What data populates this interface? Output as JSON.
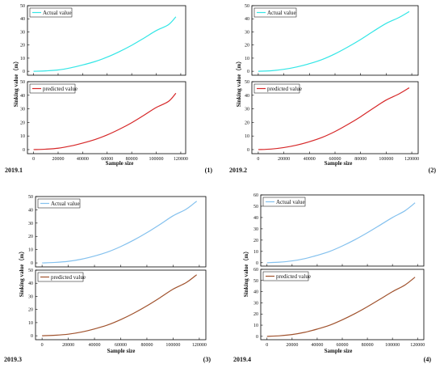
{
  "panels": [
    {
      "date_label": "2019.1",
      "number_label": "(1)",
      "chart_data": [
        {
          "type": "line",
          "series": [
            {
              "name": "Actual value",
              "color": "#33e6e6",
              "x": [
                0,
                10000,
                20000,
                30000,
                40000,
                50000,
                60000,
                70000,
                80000,
                90000,
                100000,
                110000,
                116000
              ],
              "values": [
                0,
                0.3,
                1.0,
                2.6,
                4.8,
                7.4,
                10.8,
                15.0,
                19.8,
                25.3,
                31.0,
                35.5,
                41.5
              ]
            }
          ],
          "xlim": [
            -5000,
            124000
          ],
          "ylim": [
            -3,
            50
          ],
          "yticks": [
            0,
            10,
            20,
            30,
            40,
            50
          ],
          "xticks": [
            0,
            20000,
            40000,
            60000,
            80000,
            100000,
            120000
          ],
          "xlabel": "",
          "ylabel": "",
          "legend": "top-left"
        },
        {
          "type": "line",
          "series": [
            {
              "name": "predicted value",
              "color": "#d62728",
              "x": [
                0,
                10000,
                20000,
                30000,
                40000,
                50000,
                60000,
                70000,
                80000,
                90000,
                100000,
                110000,
                116000
              ],
              "values": [
                0,
                0.3,
                1.0,
                2.6,
                4.8,
                7.4,
                10.8,
                15.0,
                19.8,
                25.3,
                31.0,
                35.5,
                41.5
              ]
            }
          ],
          "xlim": [
            -5000,
            124000
          ],
          "ylim": [
            -3,
            50
          ],
          "yticks": [
            0,
            10,
            20,
            30,
            40,
            50
          ],
          "xticks": [
            0,
            20000,
            40000,
            60000,
            80000,
            100000,
            120000
          ],
          "xlabel": "Sample size",
          "ylabel": "",
          "legend": "top-left"
        }
      ]
    },
    {
      "date_label": "2019.2",
      "number_label": "(2)",
      "chart_data": [
        {
          "type": "line",
          "series": [
            {
              "name": "Actual value",
              "color": "#33e6e6",
              "x": [
                0,
                10000,
                20000,
                30000,
                40000,
                50000,
                60000,
                70000,
                80000,
                90000,
                100000,
                110000,
                118000
              ],
              "values": [
                0,
                0.4,
                1.5,
                3.3,
                5.8,
                9.0,
                13.3,
                18.5,
                24.2,
                30.5,
                36.5,
                41.0,
                45.5
              ]
            }
          ],
          "xlim": [
            -5000,
            125000
          ],
          "ylim": [
            -3,
            50
          ],
          "yticks": [
            0,
            10,
            20,
            30,
            40,
            50
          ],
          "xticks": [
            0,
            20000,
            40000,
            60000,
            80000,
            100000,
            120000
          ],
          "xlabel": "",
          "ylabel": "",
          "legend": "top-left"
        },
        {
          "type": "line",
          "series": [
            {
              "name": "predicted value",
              "color": "#d62728",
              "x": [
                0,
                10000,
                20000,
                30000,
                40000,
                50000,
                60000,
                70000,
                80000,
                90000,
                100000,
                110000,
                118000
              ],
              "values": [
                0,
                0.4,
                1.5,
                3.3,
                5.8,
                9.0,
                13.3,
                18.5,
                24.2,
                30.5,
                36.5,
                41.0,
                45.5
              ]
            }
          ],
          "xlim": [
            -5000,
            125000
          ],
          "ylim": [
            -3,
            50
          ],
          "yticks": [
            0,
            10,
            20,
            30,
            40,
            50
          ],
          "xticks": [
            0,
            20000,
            40000,
            60000,
            80000,
            100000,
            120000
          ],
          "xlabel": "Sample size",
          "ylabel": "",
          "legend": "top-left"
        }
      ]
    },
    {
      "date_label": "2019.3",
      "number_label": "(3)",
      "chart_data": [
        {
          "type": "line",
          "series": [
            {
              "name": "Actual value",
              "color": "#84c1ee",
              "x": [
                0,
                10000,
                20000,
                30000,
                40000,
                50000,
                60000,
                70000,
                80000,
                90000,
                100000,
                110000,
                118000
              ],
              "values": [
                0,
                0.4,
                1.2,
                2.8,
                5.2,
                8.2,
                12.3,
                17.2,
                22.8,
                29.0,
                35.5,
                40.5,
                46.5
              ]
            }
          ],
          "xlim": [
            -5000,
            125000
          ],
          "ylim": [
            -3,
            50
          ],
          "yticks": [
            0,
            10,
            20,
            30,
            40,
            50
          ],
          "xticks": [
            0,
            20000,
            40000,
            60000,
            80000,
            100000,
            120000
          ],
          "xlabel": "",
          "ylabel": "",
          "legend": "top-left"
        },
        {
          "type": "line",
          "series": [
            {
              "name": "predicted value",
              "color": "#a0522d",
              "x": [
                0,
                10000,
                20000,
                30000,
                40000,
                50000,
                60000,
                70000,
                80000,
                90000,
                100000,
                110000,
                118000
              ],
              "values": [
                0,
                0.4,
                1.2,
                2.8,
                5.2,
                8.2,
                12.3,
                17.2,
                22.8,
                29.0,
                35.5,
                40.5,
                46.5
              ]
            }
          ],
          "xlim": [
            -5000,
            125000
          ],
          "ylim": [
            -3,
            50
          ],
          "yticks": [
            0,
            10,
            20,
            30,
            40,
            50
          ],
          "xticks": [
            0,
            20000,
            40000,
            60000,
            80000,
            100000,
            120000
          ],
          "xlabel": "Sample size",
          "ylabel": "",
          "legend": "top-left"
        }
      ]
    },
    {
      "date_label": "2019.4",
      "number_label": "(4)",
      "chart_data": [
        {
          "type": "line",
          "series": [
            {
              "name": "Actual value",
              "color": "#84c1ee",
              "x": [
                0,
                10000,
                20000,
                30000,
                40000,
                50000,
                60000,
                70000,
                80000,
                90000,
                100000,
                110000,
                118000
              ],
              "values": [
                0,
                0.5,
                1.6,
                3.6,
                6.5,
                10.0,
                14.8,
                20.3,
                26.5,
                33.2,
                40.0,
                46.0,
                53.0
              ]
            }
          ],
          "xlim": [
            -5000,
            125000
          ],
          "ylim": [
            -3,
            60
          ],
          "yticks": [
            0,
            10,
            20,
            30,
            40,
            50,
            60
          ],
          "xticks": [
            0,
            20000,
            40000,
            60000,
            80000,
            100000,
            120000
          ],
          "xlabel": "",
          "ylabel": "",
          "legend": "top-left"
        },
        {
          "type": "line",
          "series": [
            {
              "name": "predicted value",
              "color": "#a0522d",
              "x": [
                0,
                10000,
                20000,
                30000,
                40000,
                50000,
                60000,
                70000,
                80000,
                90000,
                100000,
                110000,
                118000
              ],
              "values": [
                0,
                0.5,
                1.6,
                3.6,
                6.5,
                10.0,
                14.8,
                20.3,
                26.5,
                33.2,
                40.0,
                46.0,
                53.0
              ]
            }
          ],
          "xlim": [
            -5000,
            125000
          ],
          "ylim": [
            -3,
            60
          ],
          "yticks": [
            0,
            10,
            20,
            30,
            40,
            50,
            60
          ],
          "xticks": [
            0,
            20000,
            40000,
            60000,
            80000,
            100000,
            120000
          ],
          "xlabel": "Sample size",
          "ylabel": "",
          "legend": "top-left"
        }
      ]
    }
  ],
  "ylabel": "Sinking value（m）"
}
